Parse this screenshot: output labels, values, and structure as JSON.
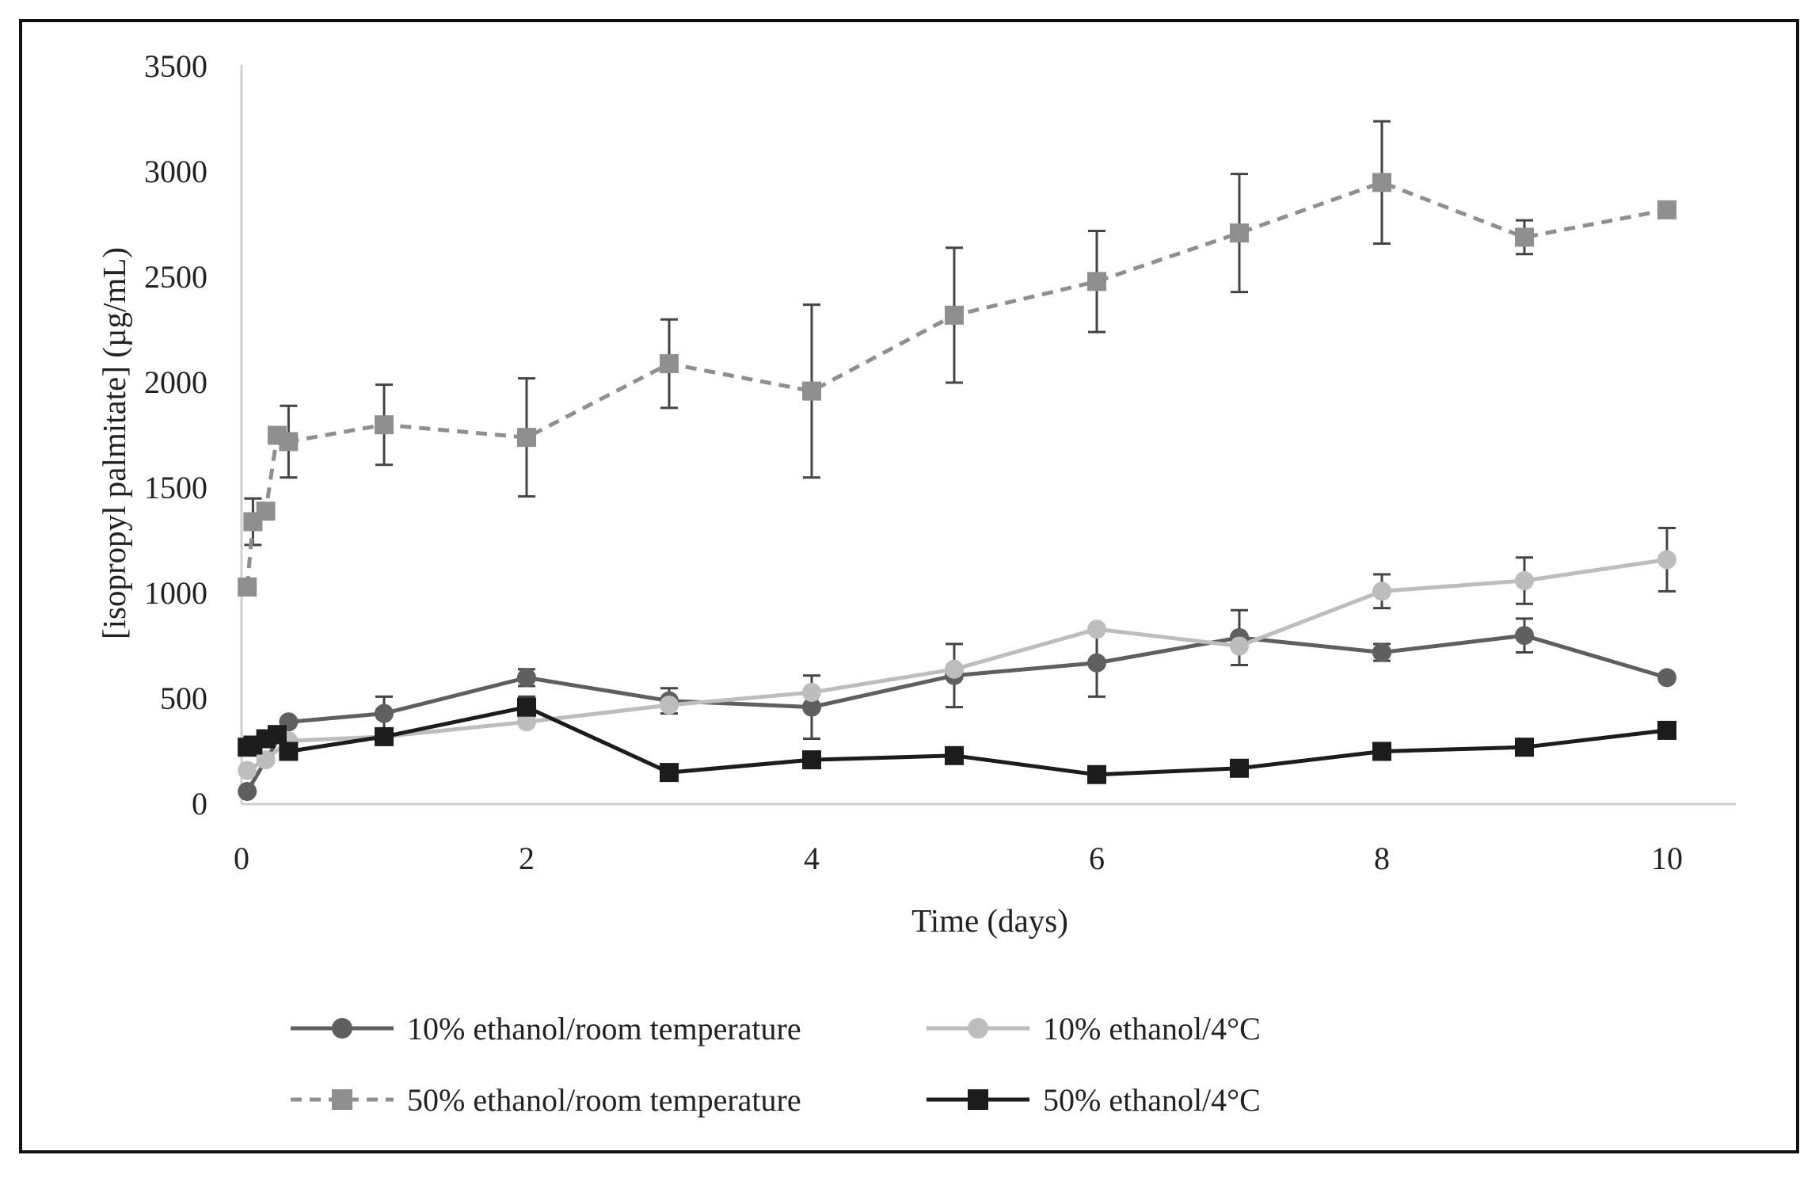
{
  "chart_data": {
    "type": "line",
    "title": "",
    "xlabel": "Time (days)",
    "ylabel": "[isopropyl palmitate] (µg/mL)",
    "xlim": [
      0,
      10
    ],
    "ylim": [
      0,
      3500
    ],
    "xticks": [
      0,
      2,
      4,
      6,
      8,
      10
    ],
    "yticks": [
      0,
      500,
      1000,
      1500,
      2000,
      2500,
      3000,
      3500
    ],
    "grid": false,
    "legend_position": "bottom",
    "series": [
      {
        "name": "10% ethanol/room temperature",
        "marker": "circle",
        "line": "solid",
        "color": "#5f5f5f",
        "points": [
          {
            "x": 0.04,
            "y": 60,
            "err": null
          },
          {
            "x": 0.33,
            "y": 390,
            "err": null
          },
          {
            "x": 1,
            "y": 430,
            "err": 80
          },
          {
            "x": 2,
            "y": 600,
            "err": 40
          },
          {
            "x": 3,
            "y": 490,
            "err": 60
          },
          {
            "x": 4,
            "y": 460,
            "err": 150
          },
          {
            "x": 5,
            "y": 610,
            "err": 150
          },
          {
            "x": 6,
            "y": 670,
            "err": 160
          },
          {
            "x": 7,
            "y": 790,
            "err": 130
          },
          {
            "x": 8,
            "y": 720,
            "err": 40
          },
          {
            "x": 9,
            "y": 800,
            "err": 80
          },
          {
            "x": 10,
            "y": 600,
            "err": null
          }
        ]
      },
      {
        "name": "10% ethanol/4°C",
        "marker": "circle",
        "line": "solid",
        "color": "#bdbdbd",
        "points": [
          {
            "x": 0.04,
            "y": 160,
            "err": null
          },
          {
            "x": 0.17,
            "y": 210,
            "err": null
          },
          {
            "x": 0.33,
            "y": 300,
            "err": null
          },
          {
            "x": 1,
            "y": 320,
            "err": null
          },
          {
            "x": 2,
            "y": 390,
            "err": null
          },
          {
            "x": 3,
            "y": 470,
            "err": null
          },
          {
            "x": 4,
            "y": 530,
            "err": null
          },
          {
            "x": 5,
            "y": 640,
            "err": null
          },
          {
            "x": 6,
            "y": 830,
            "err": null
          },
          {
            "x": 7,
            "y": 750,
            "err": null
          },
          {
            "x": 8,
            "y": 1010,
            "err": 80
          },
          {
            "x": 9,
            "y": 1060,
            "err": 110
          },
          {
            "x": 10,
            "y": 1160,
            "err": 150
          }
        ]
      },
      {
        "name": "50% ethanol/room temperature",
        "marker": "square",
        "line": "dashed",
        "color": "#8f8f8f",
        "points": [
          {
            "x": 0.04,
            "y": 1030,
            "err": null
          },
          {
            "x": 0.08,
            "y": 1340,
            "err": 110
          },
          {
            "x": 0.17,
            "y": 1390,
            "err": null
          },
          {
            "x": 0.25,
            "y": 1750,
            "err": null
          },
          {
            "x": 0.33,
            "y": 1720,
            "err": 170
          },
          {
            "x": 1,
            "y": 1800,
            "err": 190
          },
          {
            "x": 2,
            "y": 1740,
            "err": 280
          },
          {
            "x": 3,
            "y": 2090,
            "err": 210
          },
          {
            "x": 4,
            "y": 1960,
            "err": 410
          },
          {
            "x": 5,
            "y": 2320,
            "err": 320
          },
          {
            "x": 6,
            "y": 2480,
            "err": 240
          },
          {
            "x": 7,
            "y": 2710,
            "err": 280
          },
          {
            "x": 8,
            "y": 2950,
            "err": 290
          },
          {
            "x": 9,
            "y": 2690,
            "err": 80
          },
          {
            "x": 10,
            "y": 2820,
            "err": null
          }
        ]
      },
      {
        "name": "50% ethanol/4°C",
        "marker": "square",
        "line": "solid",
        "color": "#1c1c1c",
        "points": [
          {
            "x": 0.04,
            "y": 270,
            "err": null
          },
          {
            "x": 0.08,
            "y": 280,
            "err": null
          },
          {
            "x": 0.17,
            "y": 310,
            "err": null
          },
          {
            "x": 0.25,
            "y": 330,
            "err": null
          },
          {
            "x": 0.33,
            "y": 250,
            "err": null
          },
          {
            "x": 1,
            "y": 320,
            "err": null
          },
          {
            "x": 2,
            "y": 460,
            "err": 50
          },
          {
            "x": 3,
            "y": 150,
            "err": null
          },
          {
            "x": 4,
            "y": 210,
            "err": null
          },
          {
            "x": 5,
            "y": 230,
            "err": null
          },
          {
            "x": 6,
            "y": 140,
            "err": null
          },
          {
            "x": 7,
            "y": 170,
            "err": null
          },
          {
            "x": 8,
            "y": 250,
            "err": null
          },
          {
            "x": 9,
            "y": 270,
            "err": null
          },
          {
            "x": 10,
            "y": 350,
            "err": null
          }
        ]
      }
    ]
  }
}
